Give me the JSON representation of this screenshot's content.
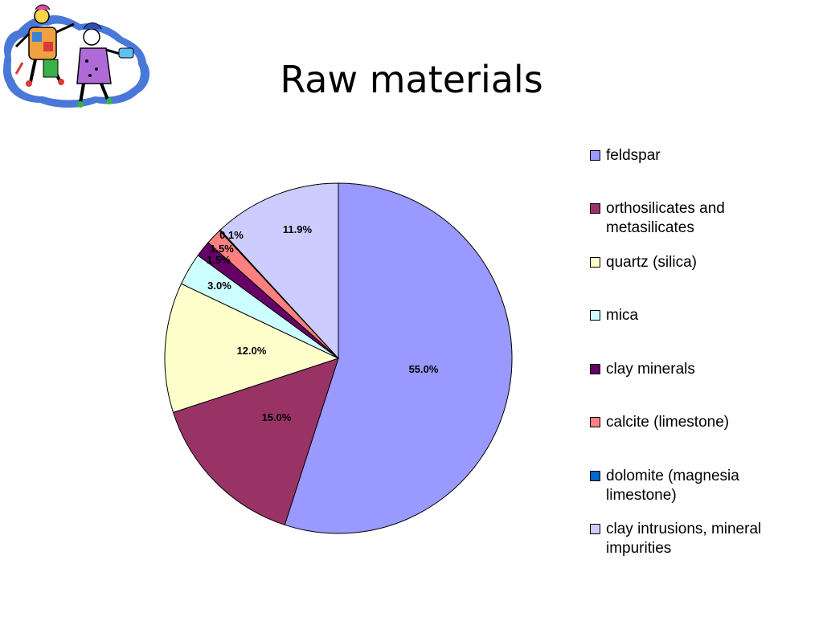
{
  "slide": {
    "title": "Raw materials"
  },
  "clipart": {
    "icon": "dancing-figures-clipart"
  },
  "chart_data": {
    "type": "pie",
    "categories": [
      "feldspar",
      "orthosilicates and metasilicates",
      "quartz (silica)",
      "mica",
      "clay minerals",
      "calcite (limestone)",
      "dolomite (magnesia limestone)",
      "clay intrusions, mineral impurities"
    ],
    "values": [
      55.0,
      15.0,
      12.0,
      3.0,
      1.5,
      1.5,
      0.1,
      11.9
    ],
    "labels": [
      "55.0%",
      "15.0%",
      "12.0%",
      "3.0%",
      "1.5%",
      "1.5%",
      "0.1%",
      "11.9%"
    ],
    "colors": [
      "#9999ff",
      "#993366",
      "#ffffcc",
      "#ccffff",
      "#660066",
      "#ff8080",
      "#0066cc",
      "#ccccff"
    ],
    "legend_position": "right"
  }
}
